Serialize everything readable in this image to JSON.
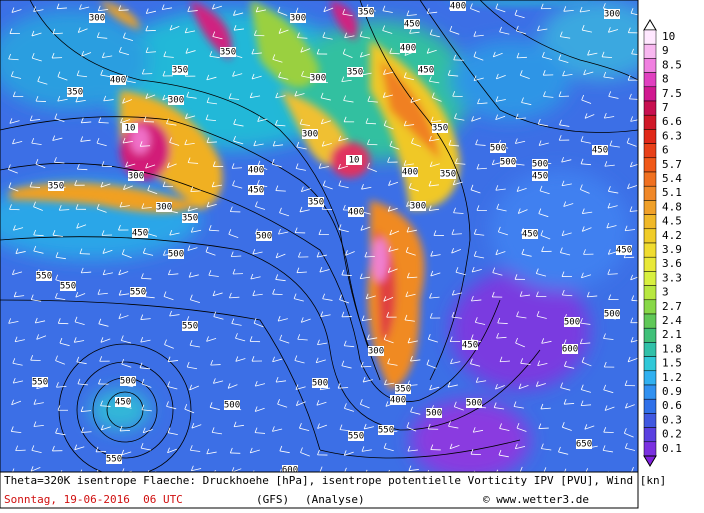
{
  "map": {
    "contour_labels": [
      "300",
      "300",
      "350",
      "400",
      "450",
      "300",
      "350",
      "400",
      "350",
      "300",
      "350",
      "300",
      "350",
      "400",
      "450",
      "350",
      "300",
      "10",
      "10",
      "300",
      "350",
      "300",
      "350",
      "450",
      "400",
      "450",
      "500",
      "350",
      "400",
      "300",
      "350",
      "400",
      "500",
      "550",
      "550",
      "550",
      "550",
      "500",
      "500",
      "500",
      "450",
      "450",
      "450",
      "450",
      "500",
      "500",
      "300",
      "450",
      "350",
      "400",
      "550",
      "500",
      "450",
      "500",
      "500",
      "500",
      "500",
      "550",
      "550",
      "600",
      "550",
      "650",
      "600"
    ]
  },
  "legend": {
    "labels": [
      "10",
      "9",
      "8.5",
      "8",
      "7.5",
      "7",
      "6.6",
      "6.3",
      "6",
      "5.7",
      "5.4",
      "5.1",
      "4.8",
      "4.5",
      "4.2",
      "3.9",
      "3.6",
      "3.3",
      "3",
      "2.7",
      "2.4",
      "2.1",
      "1.8",
      "1.5",
      "1.2",
      "0.9",
      "0.6",
      "0.3",
      "0.2",
      "0.1"
    ]
  },
  "caption": {
    "line1": "Theta=320K isentrope Flaeche: Druckhoehe [hPa], isentrope potentielle Vorticity IPV [PVU], Wind [kn]",
    "date": "Sonntag, 19-06-2016  06 UTC",
    "model": "(GFS)",
    "run": "(Analyse)",
    "credit": "© www.wetter3.de"
  }
}
